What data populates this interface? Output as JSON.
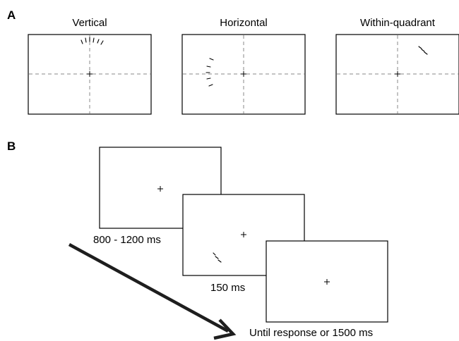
{
  "panel_a": {
    "letter": "A",
    "conditions": [
      {
        "title": "Vertical"
      },
      {
        "title": "Horizontal"
      },
      {
        "title": "Within-quadrant"
      }
    ]
  },
  "panel_b": {
    "letter": "B",
    "frames": [
      {
        "duration": "800 - 1200 ms"
      },
      {
        "duration": "150 ms"
      },
      {
        "duration": "Until response or 1500 ms"
      }
    ]
  }
}
